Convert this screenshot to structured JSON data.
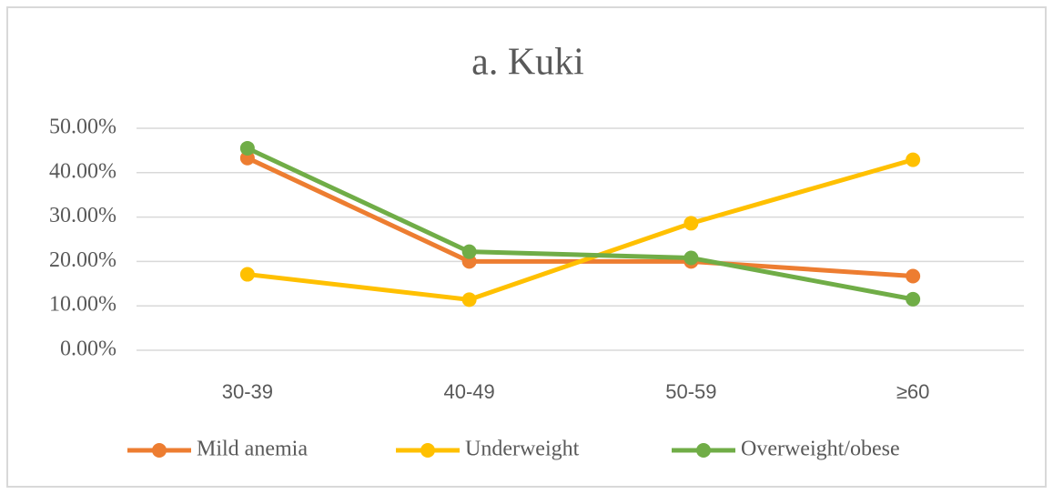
{
  "chart_data": {
    "type": "line",
    "title": "a. Kuki",
    "categories": [
      "30-39",
      "40-49",
      "50-59",
      "≥60"
    ],
    "series": [
      {
        "name": "Mild anemia",
        "color": "#ED7D31",
        "values": [
          43.3,
          20.0,
          20.0,
          16.7
        ]
      },
      {
        "name": "Underweight",
        "color": "#FFC000",
        "values": [
          17.1,
          11.4,
          28.6,
          42.9
        ]
      },
      {
        "name": "Overweight/obese",
        "color": "#70AD47",
        "values": [
          45.5,
          22.2,
          20.8,
          11.5
        ]
      }
    ],
    "ylim": [
      0,
      50
    ],
    "yticks": [
      {
        "value": 0,
        "label": "0.00%"
      },
      {
        "value": 10,
        "label": "10.00%"
      },
      {
        "value": 20,
        "label": "20.00%"
      },
      {
        "value": 30,
        "label": "30.00%"
      },
      {
        "value": 40,
        "label": "40.00%"
      },
      {
        "value": 50,
        "label": "50.00%"
      }
    ],
    "grid": true,
    "legend": "bottom"
  }
}
